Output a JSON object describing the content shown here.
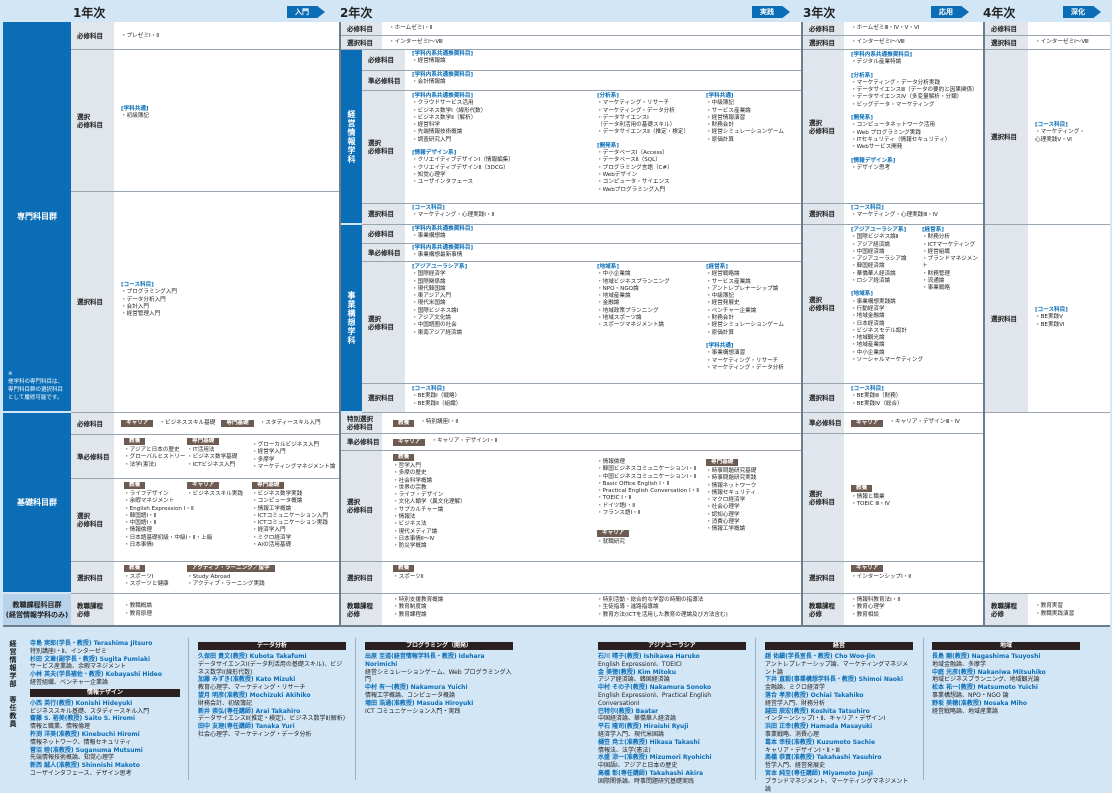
{
  "header": {
    "years": [
      "1年次",
      "2年次",
      "3年次",
      "4年次"
    ],
    "stages": [
      "入門",
      "実践",
      "応用",
      "深化"
    ]
  },
  "groups": {
    "senmon": "専門科目群",
    "note": "※\n他学科の専門科目は、\n専門科目群の選択科目\nとして履修可能です。",
    "kiso": "基礎科目群",
    "kyoshoku": "教職課程科目群\n(経営情報学科のみ)"
  },
  "depts": {
    "keiei": "経営情報学科",
    "jigyo": "事業構想学科"
  },
  "labels": {
    "hisshu": "必修科目",
    "sentaku": "選択科目",
    "junhisshu": "準必修科目",
    "sentaku_hisshu": "選択\n必修科目",
    "tokubetsu": "特別選択\n必修科目",
    "kyoshoku": "教職課程\n必修"
  },
  "colors": {
    "brand_blue": "#0a6db5",
    "tag_brown": "#6d5a50",
    "background": "#d3e6f6"
  },
  "y1": {
    "hisshu": [
      "・プレゼミⅠ・Ⅱ"
    ],
    "sentaku_hisshu": [
      "[学科共通]",
      "・初級簿記"
    ],
    "sentaku": [
      "[コース科目]",
      "・プログラミング入門",
      "・データ分析入門",
      "・会計入門",
      "・経営管理入門"
    ],
    "kiso_hisshu": [
      {
        "tag": "キャリア"
      },
      "・ビジネススキル基礎",
      {
        "tag": "専門基礎"
      },
      "・スタディースキル入門"
    ],
    "kiso_junhisshu": [
      [
        {
          "tag": "教養"
        },
        "・アジアと日本の歴史",
        "・グローバルヒストリー",
        "・法学(憲法)"
      ],
      [
        {
          "tag": "専門基礎"
        },
        "・IT活用法",
        "・ビジネス数学基礎",
        "・ICTビジネス入門"
      ],
      [
        "・グローカルビジネス入門",
        "・経営学入門",
        "・多摩学",
        "・マーケティングマネジメント論"
      ]
    ],
    "kiso_sentaku_hisshu": [
      [
        {
          "tag": "教養"
        },
        "・ライフデザイン",
        "・余暇マネジメント",
        "・English Expression Ⅰ・Ⅱ",
        "・韓国語Ⅰ・Ⅱ",
        "・中国語Ⅰ・Ⅱ",
        "・情報倫理",
        "・日本語基礎初級・中級Ⅰ・Ⅱ・上級",
        "・日本事情Ⅰ"
      ],
      [
        {
          "tag": "キャリア"
        },
        "・ビジネススキル実践"
      ],
      [
        {
          "tag": "専門基礎"
        },
        "・ビジネス数学実践",
        "・コンピュータ概論",
        "・情報工学概論",
        "・ICTコミュニケーション入門",
        "・ICTコミュニケーション実践",
        "・経済学入門",
        "・ミクロ経済学",
        "・AIの活用基礎"
      ]
    ],
    "kiso_sentaku": [
      [
        {
          "tag": "教養"
        },
        "・スポーツⅠ",
        "・スポーツと健康"
      ],
      [
        {
          "tag": "アクティブ・ラーニング／留学"
        },
        "・Study Abroad",
        "・アクティブ・ラーニング実践"
      ]
    ],
    "kyoshoku": [
      "・教職概論",
      "・教育原理"
    ]
  },
  "y2": {
    "hisshu": [
      "・ホームゼミⅠ・Ⅱ"
    ],
    "sentaku": [
      "・インターゼミⅠ～Ⅷ"
    ],
    "keiei": {
      "hisshu": [
        "[学科内系共通推奨科目]",
        "・経営情報論"
      ],
      "junhisshu": [
        "[学科内系共通推奨科目]",
        "・会計情報論"
      ],
      "sentaku_hisshu": [
        [
          "[学科内系共通推奨科目]",
          "・クラウドサービス活用",
          "・ビジネス数学Ⅰ（線形代数）",
          "・ビジネス数学Ⅱ（解析）",
          "・経営科学",
          "・先端情報技術概論",
          "・調査研究入門",
          "",
          "[情報デザイン系]",
          "・クリエイティブデザインⅠ（情報編集）",
          "・クリエイティブデザインⅡ（3DCG）",
          "・知覚心理学",
          "・ユーザインタフェース"
        ],
        [
          "[分析系]",
          "・マーケティング・リサーチ",
          "・マーケティング・データ分析",
          "・データサイエンスⅠ",
          "（データ利活用の基礎スキル）",
          "・データサイエンスⅡ（推定・検定）",
          "",
          "[開発系]",
          "・データベースⅠ（Access）",
          "・データベースⅡ（SQL）",
          "・プログラミング言語（C#）",
          "・Webデザイン",
          "・コンピュータ・サイエンス",
          "・Webプログラミング入門"
        ],
        [
          "[学科共通]",
          "・中級簿記",
          "・サービス産業論",
          "・経営情報演習",
          "・財務会計",
          "・経営シミュレーションゲーム",
          "・原価計算"
        ]
      ],
      "sentaku": [
        "[コース科目]",
        "・マーケティング・心理実践Ⅰ・Ⅱ"
      ]
    },
    "jigyo": {
      "hisshu": [
        "[学科内系共通推奨科目]",
        "・事業構想論"
      ],
      "junhisshu": [
        "[学科内系共通推奨科目]",
        "・事業構想最新事情"
      ],
      "sentaku_hisshu": [
        [
          "[アジアユーラシア系]",
          "・国際経済学",
          "・国際関係論",
          "・現代韓国論",
          "・東アジア入門",
          "・現代米国論",
          "・国際ビジネス論Ⅰ",
          "・アジア文化論",
          "・中国語圏の社会",
          "・東南アジア経済論"
        ],
        [
          "[地域系]",
          "・中小企業論",
          "・地域ビジネスプランニング",
          "・NPO・NGO論",
          "・地域産業論",
          "・金融論",
          "・地域政策プランニング",
          "・地域スポーツ論",
          "・スポーツマネジメント論"
        ],
        [
          "[経営系]",
          "・経営戦略論",
          "・サービス産業論",
          "・アントレプレナーシップ論",
          "・中級簿記",
          "・経営発展史",
          "・ベンチャー企業論",
          "・財務会計",
          "・経営シミュレーションゲーム",
          "・原価計算",
          "",
          "[学科共通]",
          "・事業構想演習",
          "・マーケティング・リサーチ",
          "・マーケティング・データ分析"
        ]
      ],
      "sentaku": [
        "[コース科目]",
        "・BE実践Ⅰ（戦略）",
        "・BE実践Ⅱ（組織）"
      ]
    },
    "kiso_tokubetsu": [
      {
        "tag": "教養"
      },
      "・特別講座Ⅰ・Ⅱ"
    ],
    "kiso_junhisshu": [
      {
        "tag": "キャリア"
      },
      "・キャリア・デザインⅠ・Ⅱ"
    ],
    "kiso_sentaku_hisshu": [
      [
        {
          "tag": "教養"
        },
        "・哲学入門",
        "・多摩の歴史",
        "・社会科学概論",
        "・世界の宗教",
        "・ライフ・デザイン",
        "・文化人類学（異文化理解）",
        "・サブカルチャー論",
        "・情報法",
        "・ビジネス法",
        "・現代メディア論",
        "・日本事情Ⅱ～Ⅳ",
        "・防災学概論"
      ],
      [
        "",
        "・情報倫理",
        "・韓国ビジネスコミュニケーションⅠ・Ⅱ",
        "・中国ビジネスコミュニケーションⅠ・Ⅱ",
        "・Basic Office English Ⅰ・Ⅱ",
        "・Practical English Conversation Ⅰ・Ⅱ",
        "・TOEIC Ⅰ・Ⅱ",
        "・ドイツ語Ⅰ・Ⅱ",
        "・フランス語Ⅰ・Ⅱ",
        "",
        "",
        {
          "tag": "キャリア"
        },
        "・就職研究"
      ],
      [
        {
          "tag": "専門基礎"
        },
        "・時事問題研究基礎",
        "・時事問題研究実践",
        "・情報ネットワーク",
        "・情報セキュリティ",
        "・マクロ経済学",
        "・社会心理学",
        "・認知心理学",
        "・消費心理学",
        "・情報工学概論"
      ]
    ],
    "kiso_sentaku": [
      {
        "tag": "教養"
      },
      "・スポーツⅡ"
    ],
    "kyoshoku": [
      [
        "・特別支援教育概論",
        "・教育制度論",
        "・教育課程論"
      ],
      [
        "・特別活動・総合的な学習の時間の指導法",
        "・生徒指導・進路指導論",
        "・教育方法(ICTを活用した教育の理論及び方法含む)"
      ]
    ]
  },
  "y3": {
    "hisshu": [
      "・ホームゼミⅢ・Ⅳ・Ⅴ・Ⅵ"
    ],
    "sentaku": [
      "・インターゼミⅠ～Ⅷ"
    ],
    "keiei_sentaku_hisshu": [
      "[学科内系共通推奨科目]",
      "・デジタル産業特論",
      "",
      "[分析系]",
      "・マーケティング・データ分析実践",
      "・データサイエンスⅢ（データの要約と因果関係）",
      "・データサイエンスⅣ（多変量解析・分類）",
      "・ビッグデータ・マーケティング",
      "",
      "[開発系]",
      "・コンピュータネットワーク活用",
      "・Web プログラミング実践",
      "・ITセキュリティ（情報セキュリティ）",
      "・Webサービス開発",
      "",
      "[情報デザイン系]",
      "・デザイン思考"
    ],
    "keiei_sentaku": [
      "[コース科目]",
      "・マーケティング・心理実践Ⅲ・Ⅳ"
    ],
    "jigyo_sentaku_hisshu": [
      [
        "[アジアユーラシア系]",
        "・国際ビジネス論Ⅱ",
        "・アジア経済論",
        "・中国経済論",
        "・アジアユーラシア論",
        "・韓国経済論",
        "・華僑華人経済論",
        "・ロシア経済論",
        "",
        "[地域系]",
        "・事業構想実践論",
        "・行動経済学",
        "・地域金融論",
        "・日本経済論",
        "・ビジネスモデル設計",
        "・地域観光論",
        "・地域産業論",
        "・中小企業論",
        "・ソーシャルマーケティング"
      ],
      [
        "[経営系]",
        "・財務分析",
        "・ICTマーケティング",
        "・経営組織",
        "・ブランドマネジメント",
        "・財務管理",
        "・流通論",
        "・事業戦略"
      ]
    ],
    "jigyo_sentaku": [
      "[コース科目]",
      "・BE実践Ⅲ（財務）",
      "・BE実践Ⅳ（総合）"
    ],
    "kiso_junhisshu": [
      {
        "tag": "キャリア"
      },
      "・キャリア・デザインⅢ・Ⅳ"
    ],
    "kiso_sentaku_hisshu": [
      {
        "tag": "教養"
      },
      "・情報と職業",
      "・TOEIC Ⅲ・Ⅳ"
    ],
    "kiso_sentaku": [
      {
        "tag": "キャリア"
      },
      "・インターンシップⅠ・Ⅱ"
    ],
    "kyoshoku": [
      "・情報科教育法Ⅰ・Ⅱ",
      "・教育心理学",
      "・教育相談"
    ]
  },
  "y4": {
    "sentaku": [
      "・インターゼミⅠ～Ⅷ"
    ],
    "keiei_sentaku": [
      "[コース科目]",
      "・マーケティング・",
      "心理実践Ⅴ・Ⅵ"
    ],
    "jigyo_sentaku": [
      "[コース科目]",
      "・BE実践Ⅴ",
      "・BE実践Ⅵ"
    ],
    "kyoshoku": [
      "・教育実習",
      "・教職実践演習"
    ]
  },
  "faculty": {
    "title": "経営情報学部　専任教員",
    "columns": [
      {
        "sections": [
          {
            "header": "",
            "members": [
              {
                "name": "寺島 実郎(学長・教授) Terashima Jitsuro",
                "subjects": "特別講座Ⅰ・Ⅱ、インターゼミ"
              },
              {
                "name": "杉田 文章(副学長・教授) Sugita Fumiaki",
                "subjects": "サービス産業論、余暇マネジメント"
              },
              {
                "name": "小林 英夫(学長補佐・教授) Kobayashi Hideo",
                "subjects": "経営組織、ベンチャー企業論"
              }
            ]
          },
          {
            "header": "情報デザイン",
            "members": [
              {
                "name": "小西 英行(教授) Konishi Hideyuki",
                "subjects": "ビジネススキル基礎、スタディースキル入門"
              },
              {
                "name": "齋藤 S. 裕美(教授) Saito S. Hiromi",
                "subjects": "情報と職業、情報倫理"
              },
              {
                "name": "杵渕 洋美(准教授) Kinebuchi Hiromi",
                "subjects": "情報ネットワーク、情報セキュリティ"
              },
              {
                "name": "菅沼 睦(准教授) Suganuma Mutsumi",
                "subjects": "先端情報技術概論、知覚心理学"
              },
              {
                "name": "新西 誠人(准教授) Shinnishi Makoto",
                "subjects": "ユーザインタフェース、デザイン思考"
              }
            ]
          }
        ]
      },
      {
        "sections": [
          {
            "header": "データ分析",
            "members": [
              {
                "name": "久保田 貴文(教授) Kubota Takafumi",
                "subjects": "データサイエンスⅠ(データ利活用の基礎スキル)、ビジネス数学Ⅰ(線形代数)"
              },
              {
                "name": "加藤 みずき(准教授) Kato Mizuki",
                "subjects": "教育心理学、マーケティング・リサーチ"
              },
              {
                "name": "望月 明彦(准教授) Mochizuki Akihiko",
                "subjects": "財務会計、初級簿記"
              },
              {
                "name": "新井 崇弘(専任講師) Arai Takahiro",
                "subjects": "データサイエンスⅡ(推定・検定)、ビジネス数学Ⅱ(解析)"
              },
              {
                "name": "田中 友理(専任講師) Tanaka Yuri",
                "subjects": "社会心理学、マーケティング・データ分析"
              }
            ]
          }
        ]
      },
      {
        "sections": [
          {
            "header": "プログラミング（開発）",
            "members": [
              {
                "name": "出原 至道(経営情報学科長・教授) Idehara Norimichi",
                "subjects": "経営シミュレーションゲーム、Web プログラミング入門"
              },
              {
                "name": "中村 有一(教授) Nakamura Yuichi",
                "subjects": "情報工学概論、コンピュータ概論"
              },
              {
                "name": "増田 浩通(准教授) Masuda Hiroyuki",
                "subjects": "ICT コミュニケーション入門・実践"
              }
            ]
          }
        ]
      },
      {
        "sections": [
          {
            "header": "アジアユーラシア",
            "members": [
              {
                "name": "石川 晴子(教授) Ishikawa Haruko",
                "subjects": "English ExpressionⅠ、TOEICⅠ"
              },
              {
                "name": "金 美徳(教授) Kim Mitoku",
                "subjects": "アジア経済論、韓国経済論"
              },
              {
                "name": "中村 その子(教授) Nakamura Sonoko",
                "subjects": "English ExpressionⅠ、Practical English ConversationⅠ"
              },
              {
                "name": "巴特尔(教授) Baatar",
                "subjects": "中国経済論、華僑華人経済論"
              },
              {
                "name": "平石 隆司(教授) Hiraishi Ryuji",
                "subjects": "経済学入門、現代米国論"
              },
              {
                "name": "樋笠 尭士(准教授) Hikasa Takashi",
                "subjects": "情報法、法学(憲法)"
              },
              {
                "name": "水盛 涼一(准教授) Mizumori Ryohichi",
                "subjects": "中国語Ⅰ、アジアと日本の歴史"
              },
              {
                "name": "高橋 彰(専任講師) Takahashi Akira",
                "subjects": "国際関係論、時事問題研究基礎実践"
              }
            ]
          }
        ]
      },
      {
        "sections": [
          {
            "header": "経営",
            "members": [
              {
                "name": "趙 佑鎭(学長室長・教授) Cho Woo-Jin",
                "subjects": "アントレプレナーシップ論、マーケティングマネジメント論"
              },
              {
                "name": "下井 直毅(事業構想学科長・教授) Shimoi Naoki",
                "subjects": "金融論、ミクロ経済学"
              },
              {
                "name": "落合 孝彦(教授) Ochiai Takahiko",
                "subjects": "経営学入門、財務分析"
              },
              {
                "name": "越田 辰宏(教授) Koshita Tatsuhiro",
                "subjects": "インターンシップⅠ・Ⅱ、キャリア・デザインⅠ"
              },
              {
                "name": "浜田 正幸(教授) Hamada Masayuki",
                "subjects": "事業戦略、消費心理"
              },
              {
                "name": "葛本 幸枝(准教授) Kuzumoto Sachie",
                "subjects": "キャリア・デザインⅠ・Ⅱ・Ⅲ"
              },
              {
                "name": "髙橋 恭寛(准教授) Takahashi Yasuhiro",
                "subjects": "哲学入門、経営発展史"
              },
              {
                "name": "宮本 純至(専任講師) Miyamoto Junji",
                "subjects": "ブランドマネジメント、マーケティングマネジメント論"
              }
            ]
          }
        ]
      },
      {
        "sections": [
          {
            "header": "地域",
            "members": [
              {
                "name": "長島 剛(教授) Nagashima Tsuyoshi",
                "subjects": "地域金融論、多摩学"
              },
              {
                "name": "中庭 光彦(教授) Nakaniwa Mitsuhiko",
                "subjects": "地域ビジネスプランニング、地域観光論"
              },
              {
                "name": "松本 祐一(教授) Matsumoto Yuichi",
                "subjects": "事業構想論、NPO・NGO 論"
              },
              {
                "name": "野坂 美穂(准教授) Nosaka Miho",
                "subjects": "経営戦略論、地域産業論"
              }
            ]
          }
        ]
      }
    ]
  }
}
